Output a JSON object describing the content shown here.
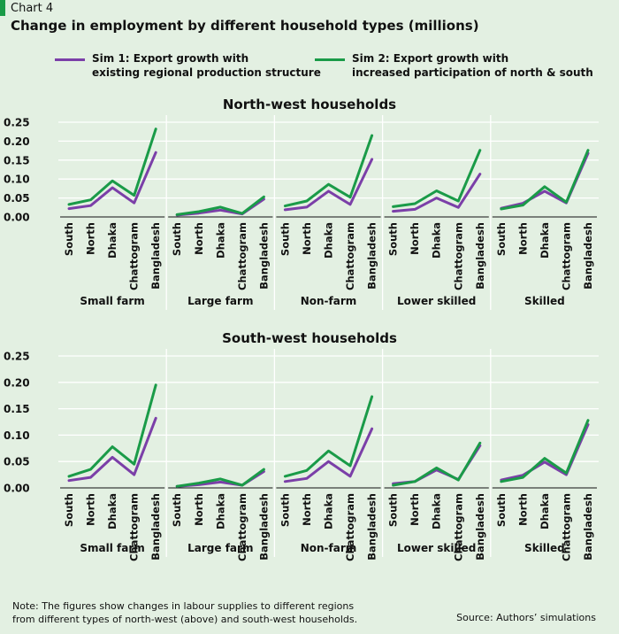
{
  "header": {
    "chart_number": "Chart 4",
    "title": "Change in employment by different household types (millions)"
  },
  "colors": {
    "sim1": "#7b3fa8",
    "sim2": "#1a9b48",
    "grid": "#ffffff",
    "background": "#e3f0e2"
  },
  "legend": [
    {
      "line1": "Sim 1: Export growth with",
      "line2": "existing regional production structure"
    },
    {
      "line1": "Sim 2: Export growth with",
      "line2": "increased participation of north & south"
    }
  ],
  "footer": {
    "note": "Note: The figures show changes in labour supplies to different regions\nfrom different types of north-west (above) and south-west households.",
    "source": "Source: Authors’ simulations"
  },
  "chart_data": [
    {
      "type": "line",
      "title": "North-west households",
      "y_ticks": [
        "0.25",
        "0.20",
        "0.15",
        "0.10",
        "0.05",
        "0.00"
      ],
      "ylim": [
        0,
        0.25
      ],
      "grid": true,
      "categories": [
        "South",
        "North",
        "Dhaka",
        "Chattogram",
        "Bangladesh"
      ],
      "panels": [
        {
          "name": "Small farm",
          "series": [
            {
              "name": "Sim 1: Export growth with existing regional production structure",
              "values": [
                0.022,
                0.03,
                0.077,
                0.037,
                0.17
              ]
            },
            {
              "name": "Sim 2: Export growth with increased participation of north & south",
              "values": [
                0.033,
                0.045,
                0.095,
                0.057,
                0.232
              ]
            }
          ]
        },
        {
          "name": "Large farm",
          "series": [
            {
              "name": "Sim 1: Export growth with existing regional production structure",
              "values": [
                0.005,
                0.01,
                0.018,
                0.008,
                0.047
              ]
            },
            {
              "name": "Sim 2: Export growth with increased participation of north & south",
              "values": [
                0.006,
                0.014,
                0.026,
                0.009,
                0.053
              ]
            }
          ]
        },
        {
          "name": "Non-farm",
          "series": [
            {
              "name": "Sim 1: Export growth with existing regional production structure",
              "values": [
                0.019,
                0.026,
                0.068,
                0.033,
                0.152
              ]
            },
            {
              "name": "Sim 2: Export growth with increased participation of north & south",
              "values": [
                0.029,
                0.042,
                0.086,
                0.052,
                0.215
              ]
            }
          ]
        },
        {
          "name": "Lower skilled",
          "series": [
            {
              "name": "Sim 1: Export growth with existing regional production structure",
              "values": [
                0.015,
                0.02,
                0.05,
                0.025,
                0.113
              ]
            },
            {
              "name": "Sim 2: Export growth with increased participation of north & south",
              "values": [
                0.027,
                0.035,
                0.069,
                0.042,
                0.176
              ]
            }
          ]
        },
        {
          "name": "Skilled",
          "series": [
            {
              "name": "Sim 1: Export growth with existing regional production structure",
              "values": [
                0.023,
                0.036,
                0.068,
                0.037,
                0.168
              ]
            },
            {
              "name": "Sim 2: Export growth with increased participation of north & south",
              "values": [
                0.021,
                0.031,
                0.08,
                0.039,
                0.176
              ]
            }
          ]
        }
      ]
    },
    {
      "type": "line",
      "title": "South-west households",
      "y_ticks": [
        "0.25",
        "0.20",
        "0.15",
        "0.10",
        "0.05",
        "0.00"
      ],
      "ylim": [
        0,
        0.25
      ],
      "grid": true,
      "categories": [
        "South",
        "North",
        "Dhaka",
        "Chattogram",
        "Bangladesh"
      ],
      "panels": [
        {
          "name": "Small farm",
          "series": [
            {
              "name": "Sim 1: Export growth with existing regional production structure",
              "values": [
                0.014,
                0.02,
                0.058,
                0.025,
                0.132
              ]
            },
            {
              "name": "Sim 2: Export growth with increased participation of north & south",
              "values": [
                0.022,
                0.035,
                0.078,
                0.045,
                0.195
              ]
            }
          ]
        },
        {
          "name": "Large farm",
          "series": [
            {
              "name": "Sim 1: Export growth with existing regional production structure",
              "values": [
                0.003,
                0.006,
                0.011,
                0.005,
                0.031
              ]
            },
            {
              "name": "Sim 2: Export growth with increased participation of north & south",
              "values": [
                0.003,
                0.009,
                0.017,
                0.005,
                0.035
              ]
            }
          ]
        },
        {
          "name": "Non-farm",
          "series": [
            {
              "name": "Sim 1: Export growth with existing regional production structure",
              "values": [
                0.012,
                0.018,
                0.05,
                0.022,
                0.112
              ]
            },
            {
              "name": "Sim 2: Export growth with increased participation of north & south",
              "values": [
                0.022,
                0.033,
                0.07,
                0.042,
                0.173
              ]
            }
          ]
        },
        {
          "name": "Lower skilled",
          "series": [
            {
              "name": "Sim 1: Export growth with existing regional production structure",
              "values": [
                0.008,
                0.012,
                0.034,
                0.016,
                0.08
              ]
            },
            {
              "name": "Sim 2: Export growth with increased participation of north & south",
              "values": [
                0.005,
                0.012,
                0.038,
                0.015,
                0.085
              ]
            }
          ]
        },
        {
          "name": "Skilled",
          "series": [
            {
              "name": "Sim 1: Export growth with existing regional production structure",
              "values": [
                0.015,
                0.024,
                0.049,
                0.025,
                0.12
              ]
            },
            {
              "name": "Sim 2: Export growth with increased participation of north & south",
              "values": [
                0.012,
                0.02,
                0.056,
                0.028,
                0.128
              ]
            }
          ]
        }
      ]
    }
  ]
}
